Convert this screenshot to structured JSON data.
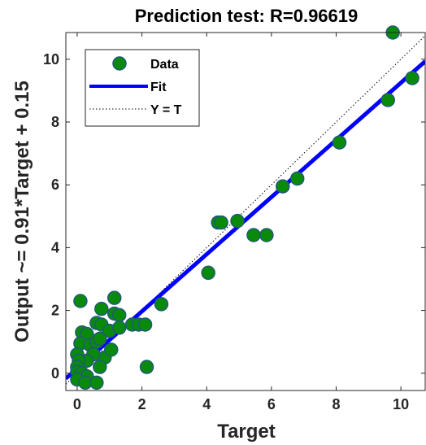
{
  "chart_data": {
    "type": "scatter",
    "title": "Prediction test: R=0.96619",
    "xlabel": "Target",
    "ylabel": "Output ~= 0.91*Target + 0.15",
    "xlim": [
      -0.35,
      10.75
    ],
    "ylim": [
      -0.55,
      10.85
    ],
    "xticks": [
      0,
      2,
      4,
      6,
      8,
      10
    ],
    "yticks": [
      0,
      2,
      4,
      6,
      8,
      10
    ],
    "grid": false,
    "legend": {
      "placement": "top-left",
      "entries": [
        "Data",
        "Fit",
        "Y = T"
      ]
    },
    "fit": {
      "slope": 0.91,
      "intercept": 0.15
    },
    "colors": {
      "data_fill": "#0a8a0a",
      "data_edge": "#1f5a78",
      "fit": "#0000ff",
      "identity": "#000000"
    },
    "points": [
      {
        "x": 0.1,
        "y": 2.3
      },
      {
        "x": 0.15,
        "y": 1.3
      },
      {
        "x": 0.3,
        "y": 1.25
      },
      {
        "x": 0.1,
        "y": 0.95
      },
      {
        "x": 0.4,
        "y": 0.9
      },
      {
        "x": 0.6,
        "y": 1.6
      },
      {
        "x": 0.75,
        "y": 2.05
      },
      {
        "x": 0.75,
        "y": 1.55
      },
      {
        "x": 0.6,
        "y": 1.0
      },
      {
        "x": 0.7,
        "y": 1.1
      },
      {
        "x": 0.85,
        "y": 0.5
      },
      {
        "x": 0.5,
        "y": 0.6
      },
      {
        "x": 0.3,
        "y": 0.4
      },
      {
        "x": 0.0,
        "y": 0.6
      },
      {
        "x": 0.05,
        "y": 0.4
      },
      {
        "x": 0.0,
        "y": 0.2
      },
      {
        "x": 0.0,
        "y": 0.05
      },
      {
        "x": 0.15,
        "y": 0.0
      },
      {
        "x": 0.3,
        "y": -0.1
      },
      {
        "x": 0.0,
        "y": -0.2
      },
      {
        "x": 0.25,
        "y": -0.3
      },
      {
        "x": 0.6,
        "y": -0.3
      },
      {
        "x": 0.7,
        "y": 0.2
      },
      {
        "x": 1.0,
        "y": 1.35
      },
      {
        "x": 1.15,
        "y": 1.9
      },
      {
        "x": 1.15,
        "y": 2.4
      },
      {
        "x": 1.3,
        "y": 1.85
      },
      {
        "x": 1.3,
        "y": 1.45
      },
      {
        "x": 1.05,
        "y": 0.75
      },
      {
        "x": 1.7,
        "y": 1.55
      },
      {
        "x": 1.9,
        "y": 1.55
      },
      {
        "x": 2.1,
        "y": 1.55
      },
      {
        "x": 2.15,
        "y": 0.2
      },
      {
        "x": 2.6,
        "y": 2.2
      },
      {
        "x": 4.05,
        "y": 3.2
      },
      {
        "x": 4.35,
        "y": 4.8
      },
      {
        "x": 4.45,
        "y": 4.8
      },
      {
        "x": 4.95,
        "y": 4.85
      },
      {
        "x": 5.45,
        "y": 4.4
      },
      {
        "x": 5.85,
        "y": 4.4
      },
      {
        "x": 6.35,
        "y": 5.95
      },
      {
        "x": 6.8,
        "y": 6.2
      },
      {
        "x": 8.1,
        "y": 7.35
      },
      {
        "x": 9.6,
        "y": 8.7
      },
      {
        "x": 10.35,
        "y": 9.4
      },
      {
        "x": 9.75,
        "y": 10.85
      }
    ]
  }
}
